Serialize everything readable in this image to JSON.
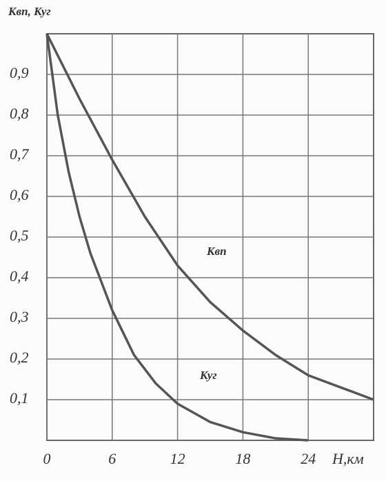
{
  "chart_data": {
    "type": "line",
    "y_label": "Квп, Куг",
    "x_label": "H,км",
    "xlim": [
      0,
      30
    ],
    "ylim": [
      0,
      1
    ],
    "xticks": [
      0,
      6,
      12,
      18,
      24
    ],
    "yticks": [
      {
        "value": 0.1,
        "label": "0,1"
      },
      {
        "value": 0.2,
        "label": "0,2"
      },
      {
        "value": 0.3,
        "label": "0,3"
      },
      {
        "value": 0.4,
        "label": "0,4"
      },
      {
        "value": 0.5,
        "label": "0,5"
      },
      {
        "value": 0.6,
        "label": "0,6"
      },
      {
        "value": 0.7,
        "label": "0,7"
      },
      {
        "value": 0.8,
        "label": "0,8"
      },
      {
        "value": 0.9,
        "label": "0,9"
      }
    ],
    "grid": true,
    "series": [
      {
        "name": "Квп",
        "color": "#555555",
        "x": [
          0,
          3,
          6,
          9,
          12,
          15,
          18,
          21,
          24,
          27,
          30
        ],
        "values": [
          1.0,
          0.84,
          0.69,
          0.55,
          0.43,
          0.34,
          0.27,
          0.21,
          0.16,
          0.13,
          0.1
        ]
      },
      {
        "name": "Куг",
        "color": "#555555",
        "x": [
          0,
          1,
          2,
          3,
          4,
          6,
          8,
          10,
          12,
          15,
          18,
          21,
          24
        ],
        "values": [
          1.0,
          0.8,
          0.66,
          0.55,
          0.46,
          0.32,
          0.21,
          0.14,
          0.09,
          0.045,
          0.02,
          0.005,
          0.0
        ]
      }
    ]
  }
}
